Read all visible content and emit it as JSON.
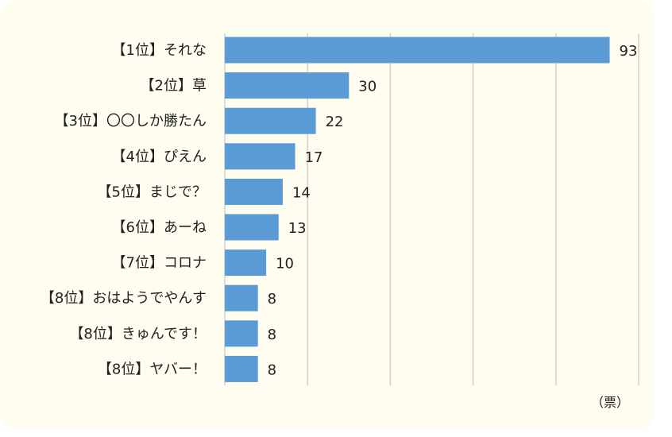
{
  "chart_data": {
    "type": "bar",
    "orientation": "horizontal",
    "categories": [
      "【1位】それな",
      "【2位】草",
      "【3位】〇〇しか勝たん",
      "【4位】ぴえん",
      "【5位】まじで？",
      "【6位】あーね",
      "【7位】コロナ",
      "【8位】おはようでやんす",
      "【8位】きゅんです！",
      "【8位】ヤバー！"
    ],
    "values": [
      93,
      30,
      22,
      17,
      14,
      13,
      10,
      8,
      8,
      8
    ],
    "unit_label": "（票）",
    "xlim": [
      0,
      100
    ],
    "grid": true,
    "colors": {
      "bar": "#5b9bd5",
      "grid": "#d0d0d0",
      "background": "#fefdf0"
    }
  }
}
